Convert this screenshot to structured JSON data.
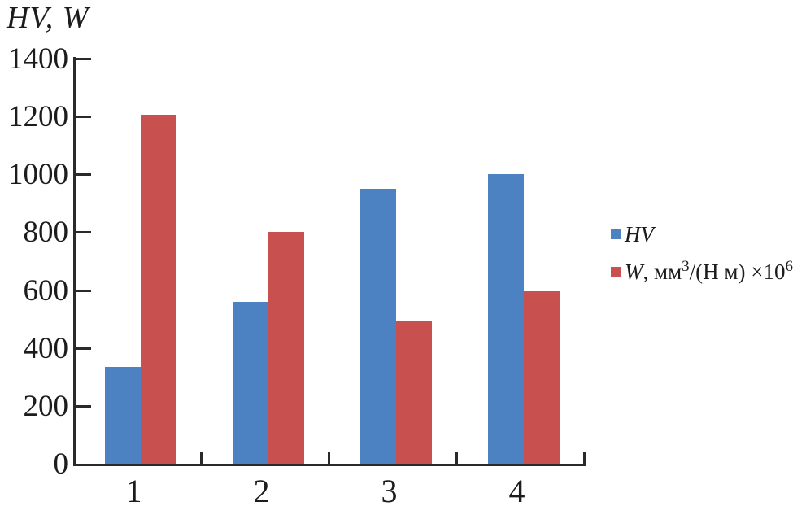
{
  "title": "HV, W",
  "colors": {
    "hv_bar": "#4d82c2",
    "w_bar": "#c8514f",
    "axis": "#2a2a2a",
    "text": "#1c1c1c",
    "background": "#ffffff"
  },
  "legend": {
    "items": [
      {
        "color": "#4d82c2",
        "plain_text": "HV",
        "segments": [
          {
            "text": "HV",
            "italic": true,
            "sup": false
          }
        ]
      },
      {
        "color": "#c8514f",
        "plain_text": "W, мм³/(Н м) ×10⁶",
        "segments": [
          {
            "text": "W",
            "italic": true,
            "sup": false
          },
          {
            "text": ", мм",
            "italic": false,
            "sup": false
          },
          {
            "text": "3",
            "italic": false,
            "sup": true
          },
          {
            "text": "/(Н м) ×10",
            "italic": false,
            "sup": false
          },
          {
            "text": "6",
            "italic": false,
            "sup": true
          }
        ]
      }
    ]
  },
  "chart_data": {
    "type": "bar",
    "title": "HV, W",
    "categories": [
      "1",
      "2",
      "3",
      "4"
    ],
    "series": [
      {
        "name": "HV",
        "color": "#4d82c2",
        "values": [
          335,
          560,
          950,
          1000
        ]
      },
      {
        "name": "W, мм³/(Н м) ×10⁶",
        "color": "#c8514f",
        "values": [
          1205,
          800,
          495,
          595
        ]
      }
    ],
    "xlabel": "",
    "ylabel": "HV, W",
    "ylim": [
      0,
      1400
    ],
    "yticks": [
      0,
      200,
      400,
      600,
      800,
      1000,
      1200,
      1400
    ],
    "grid": false,
    "legend_position": "right"
  }
}
